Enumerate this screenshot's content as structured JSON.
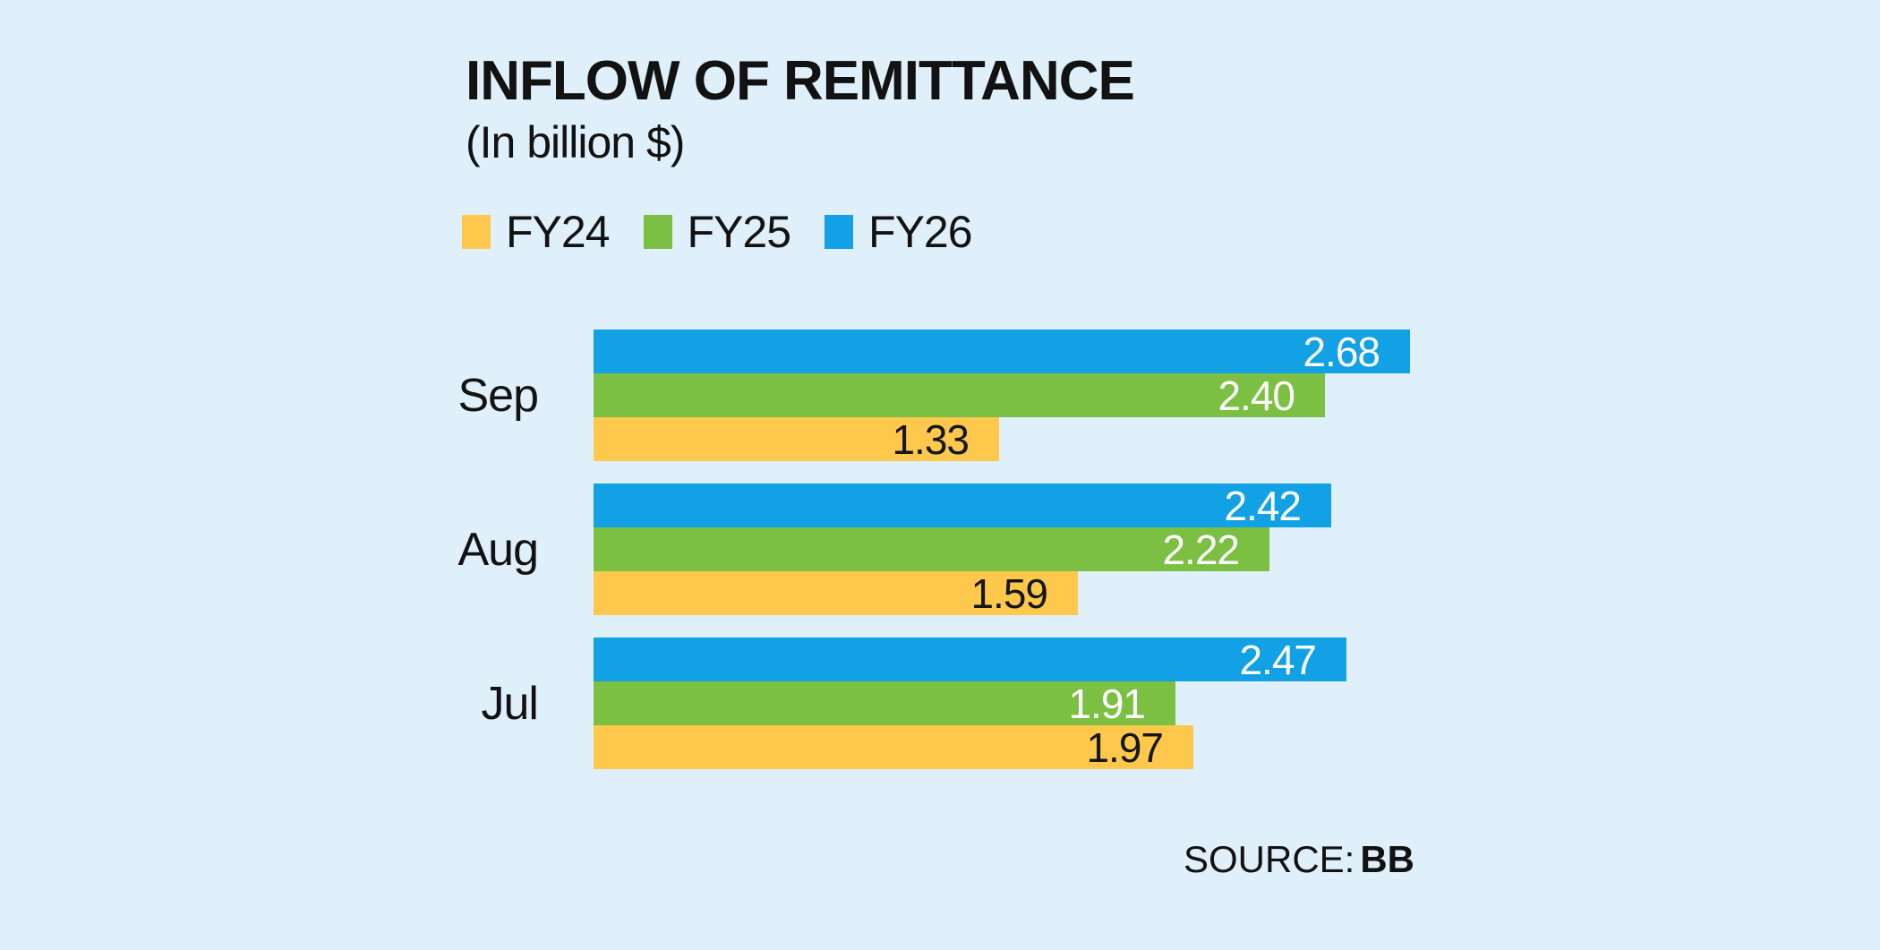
{
  "page": {
    "background_color": "#DFF0FA"
  },
  "chart_data": {
    "type": "bar",
    "orientation": "horizontal",
    "title": "INFLOW OF REMITTANCE",
    "subtitle": "(In billion $)",
    "categories": [
      "Sep",
      "Aug",
      "Jul"
    ],
    "series": [
      {
        "name": "FY26",
        "color": "#12A1E4",
        "label_color": "#FFFFFF",
        "values": [
          2.68,
          2.42,
          2.47
        ],
        "labels": [
          "2.68",
          "2.42",
          "2.47"
        ]
      },
      {
        "name": "FY25",
        "color": "#7BC043",
        "label_color": "#FFFFFF",
        "values": [
          2.4,
          2.22,
          1.91
        ],
        "labels": [
          "2.40",
          "2.22",
          "1.91"
        ]
      },
      {
        "name": "FY24",
        "color": "#FDC84C",
        "label_color": "#161616",
        "values": [
          1.33,
          1.59,
          1.97
        ],
        "labels": [
          "1.33",
          "1.59",
          "1.97"
        ]
      }
    ],
    "legend": [
      {
        "label": "FY24",
        "color": "#FDC84C"
      },
      {
        "label": "FY25",
        "color": "#7BC043"
      },
      {
        "label": "FY26",
        "color": "#12A1E4"
      }
    ],
    "xlim": [
      0,
      2.75
    ],
    "grid": false,
    "axes_visible": false,
    "legend_position": "top-left",
    "value_labels": "inside-end"
  },
  "source": {
    "label": "SOURCE:",
    "value": "BB"
  }
}
